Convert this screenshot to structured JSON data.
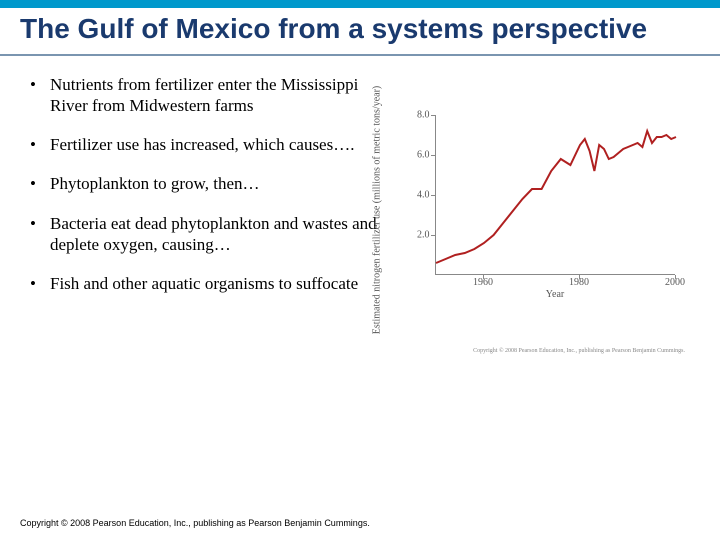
{
  "title": "The Gulf of Mexico from a systems perspective",
  "bullets": [
    "Nutrients from fertilizer enter the Mississippi River from Midwestern farms",
    "Fertilizer use has increased, which causes….",
    "Phytoplankton to grow, then…",
    "Bacteria eat dead phytoplankton and wastes and deplete oxygen, causing…",
    "Fish and other aquatic organisms to suffocate"
  ],
  "chart": {
    "type": "line",
    "y_label": "Estimated nitrogen fertilizer\nuse (millions of metric tons/year)",
    "x_label": "Year",
    "xlim": [
      1950,
      2000
    ],
    "ylim": [
      0,
      8
    ],
    "y_ticks": [
      2.0,
      4.0,
      6.0,
      8.0
    ],
    "x_ticks": [
      1960,
      1980,
      2000
    ],
    "line_color": "#b02020",
    "line_width": 2,
    "background_color": "#ffffff",
    "axis_color": "#888888",
    "data": [
      [
        1950,
        0.6
      ],
      [
        1952,
        0.8
      ],
      [
        1954,
        1.0
      ],
      [
        1956,
        1.1
      ],
      [
        1958,
        1.3
      ],
      [
        1960,
        1.6
      ],
      [
        1962,
        2.0
      ],
      [
        1964,
        2.6
      ],
      [
        1966,
        3.2
      ],
      [
        1968,
        3.8
      ],
      [
        1970,
        4.3
      ],
      [
        1972,
        4.3
      ],
      [
        1974,
        5.2
      ],
      [
        1976,
        5.8
      ],
      [
        1978,
        5.5
      ],
      [
        1980,
        6.5
      ],
      [
        1981,
        6.8
      ],
      [
        1982,
        6.2
      ],
      [
        1983,
        5.2
      ],
      [
        1984,
        6.5
      ],
      [
        1985,
        6.3
      ],
      [
        1986,
        5.8
      ],
      [
        1987,
        5.9
      ],
      [
        1988,
        6.1
      ],
      [
        1989,
        6.3
      ],
      [
        1990,
        6.4
      ],
      [
        1991,
        6.5
      ],
      [
        1992,
        6.6
      ],
      [
        1993,
        6.4
      ],
      [
        1994,
        7.2
      ],
      [
        1995,
        6.6
      ],
      [
        1996,
        6.9
      ],
      [
        1997,
        6.9
      ],
      [
        1998,
        7.0
      ],
      [
        1999,
        6.8
      ],
      [
        2000,
        6.9
      ]
    ],
    "credit": "Copyright © 2008 Pearson Education, Inc., publishing as Pearson Benjamin Cummings."
  },
  "copyright": "Copyright © 2008 Pearson Education, Inc., publishing as Pearson Benjamin Cummings.",
  "colors": {
    "top_bar": "#0099cc",
    "title_text": "#1a3a6e",
    "rule": "#7a95b0"
  }
}
